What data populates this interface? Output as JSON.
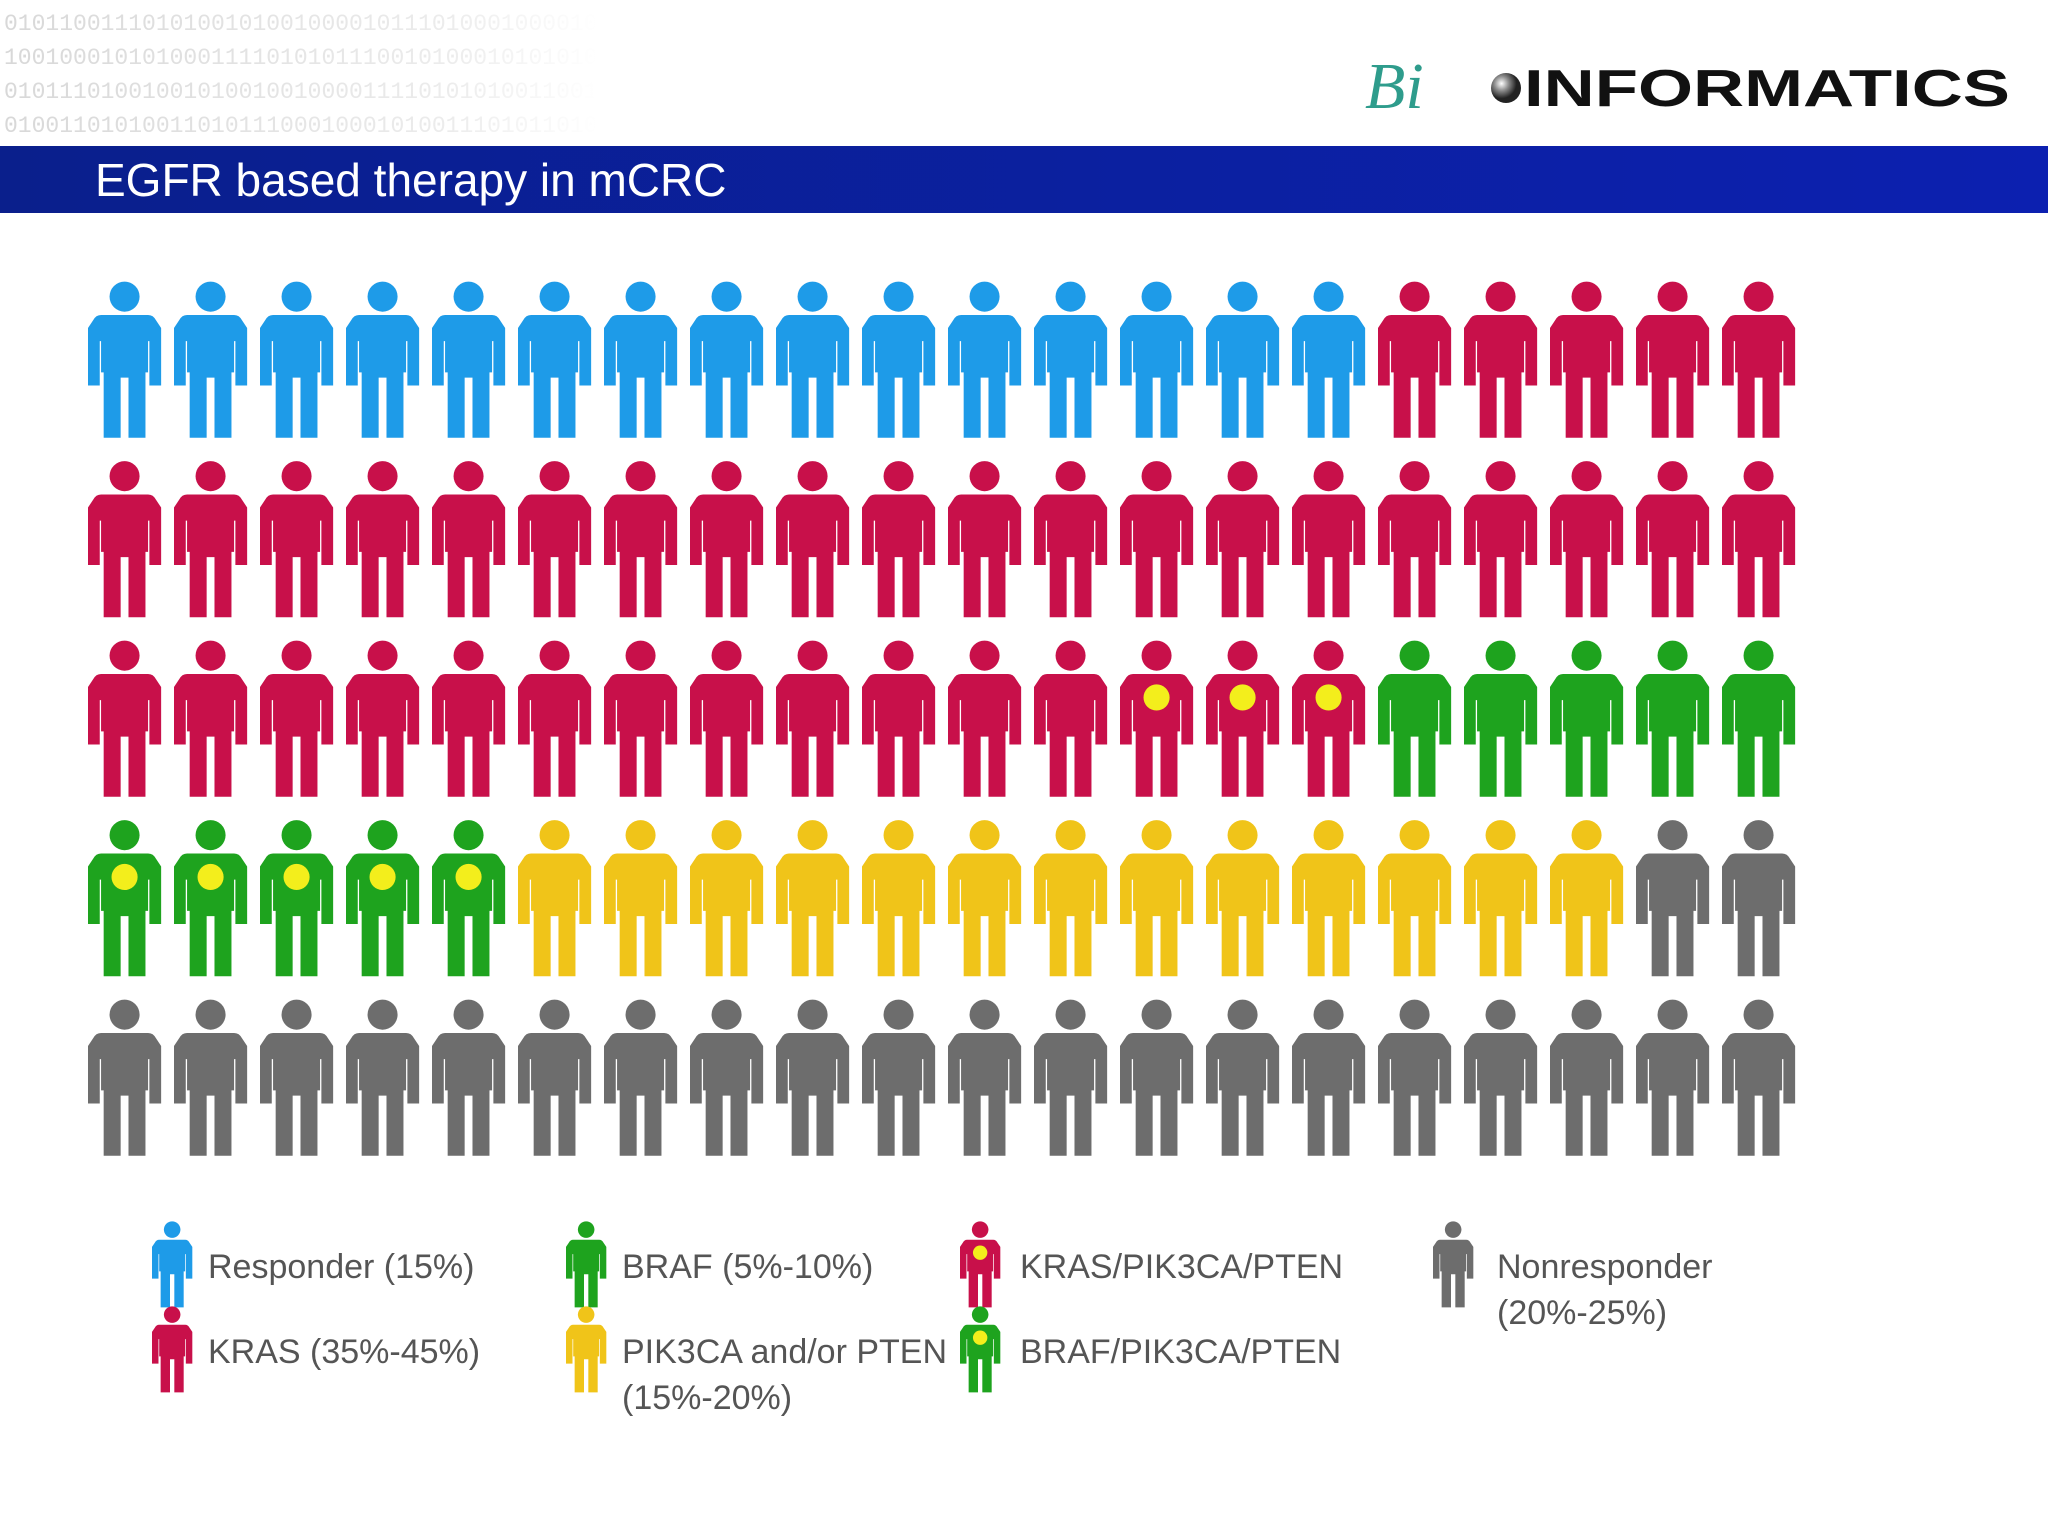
{
  "header": {
    "binary_lines": [
      "0101100111010100101001000010111010001000010",
      "1001000101010001111010101110010100010101010",
      "0101110100100101001001000011110101010011001",
      "0100110101001101011100010001010011101011010"
    ],
    "logo": {
      "prefix": "Bi",
      "suffix": "INFORMATICS"
    },
    "title": "EGFR based therapy in mCRC"
  },
  "chart_data": {
    "type": "pictogram",
    "per_row": 20,
    "series": [
      {
        "name": "Responder (15%)",
        "color": "#1e9be8",
        "value": 15
      },
      {
        "name": "KRAS (35%-45%)",
        "color": "#c8104a",
        "value": 37
      },
      {
        "name": "KRAS/PIK3CA/PTEN",
        "color": "#c8104a",
        "dot": "#f3ee1c",
        "value": 3
      },
      {
        "name": "BRAF (5%-10%)",
        "color": "#1ea31e",
        "value": 5
      },
      {
        "name": "BRAF/PIK3CA/PTEN",
        "color": "#1ea31e",
        "dot": "#f3ee1c",
        "value": 5
      },
      {
        "name": "PIK3CA and/or PTEN (15%-20%)",
        "color": "#f0c419",
        "value": 13
      },
      {
        "name": "Nonresponder (20%-25%)",
        "color": "#6d6d6d",
        "value": 22
      }
    ]
  }
}
